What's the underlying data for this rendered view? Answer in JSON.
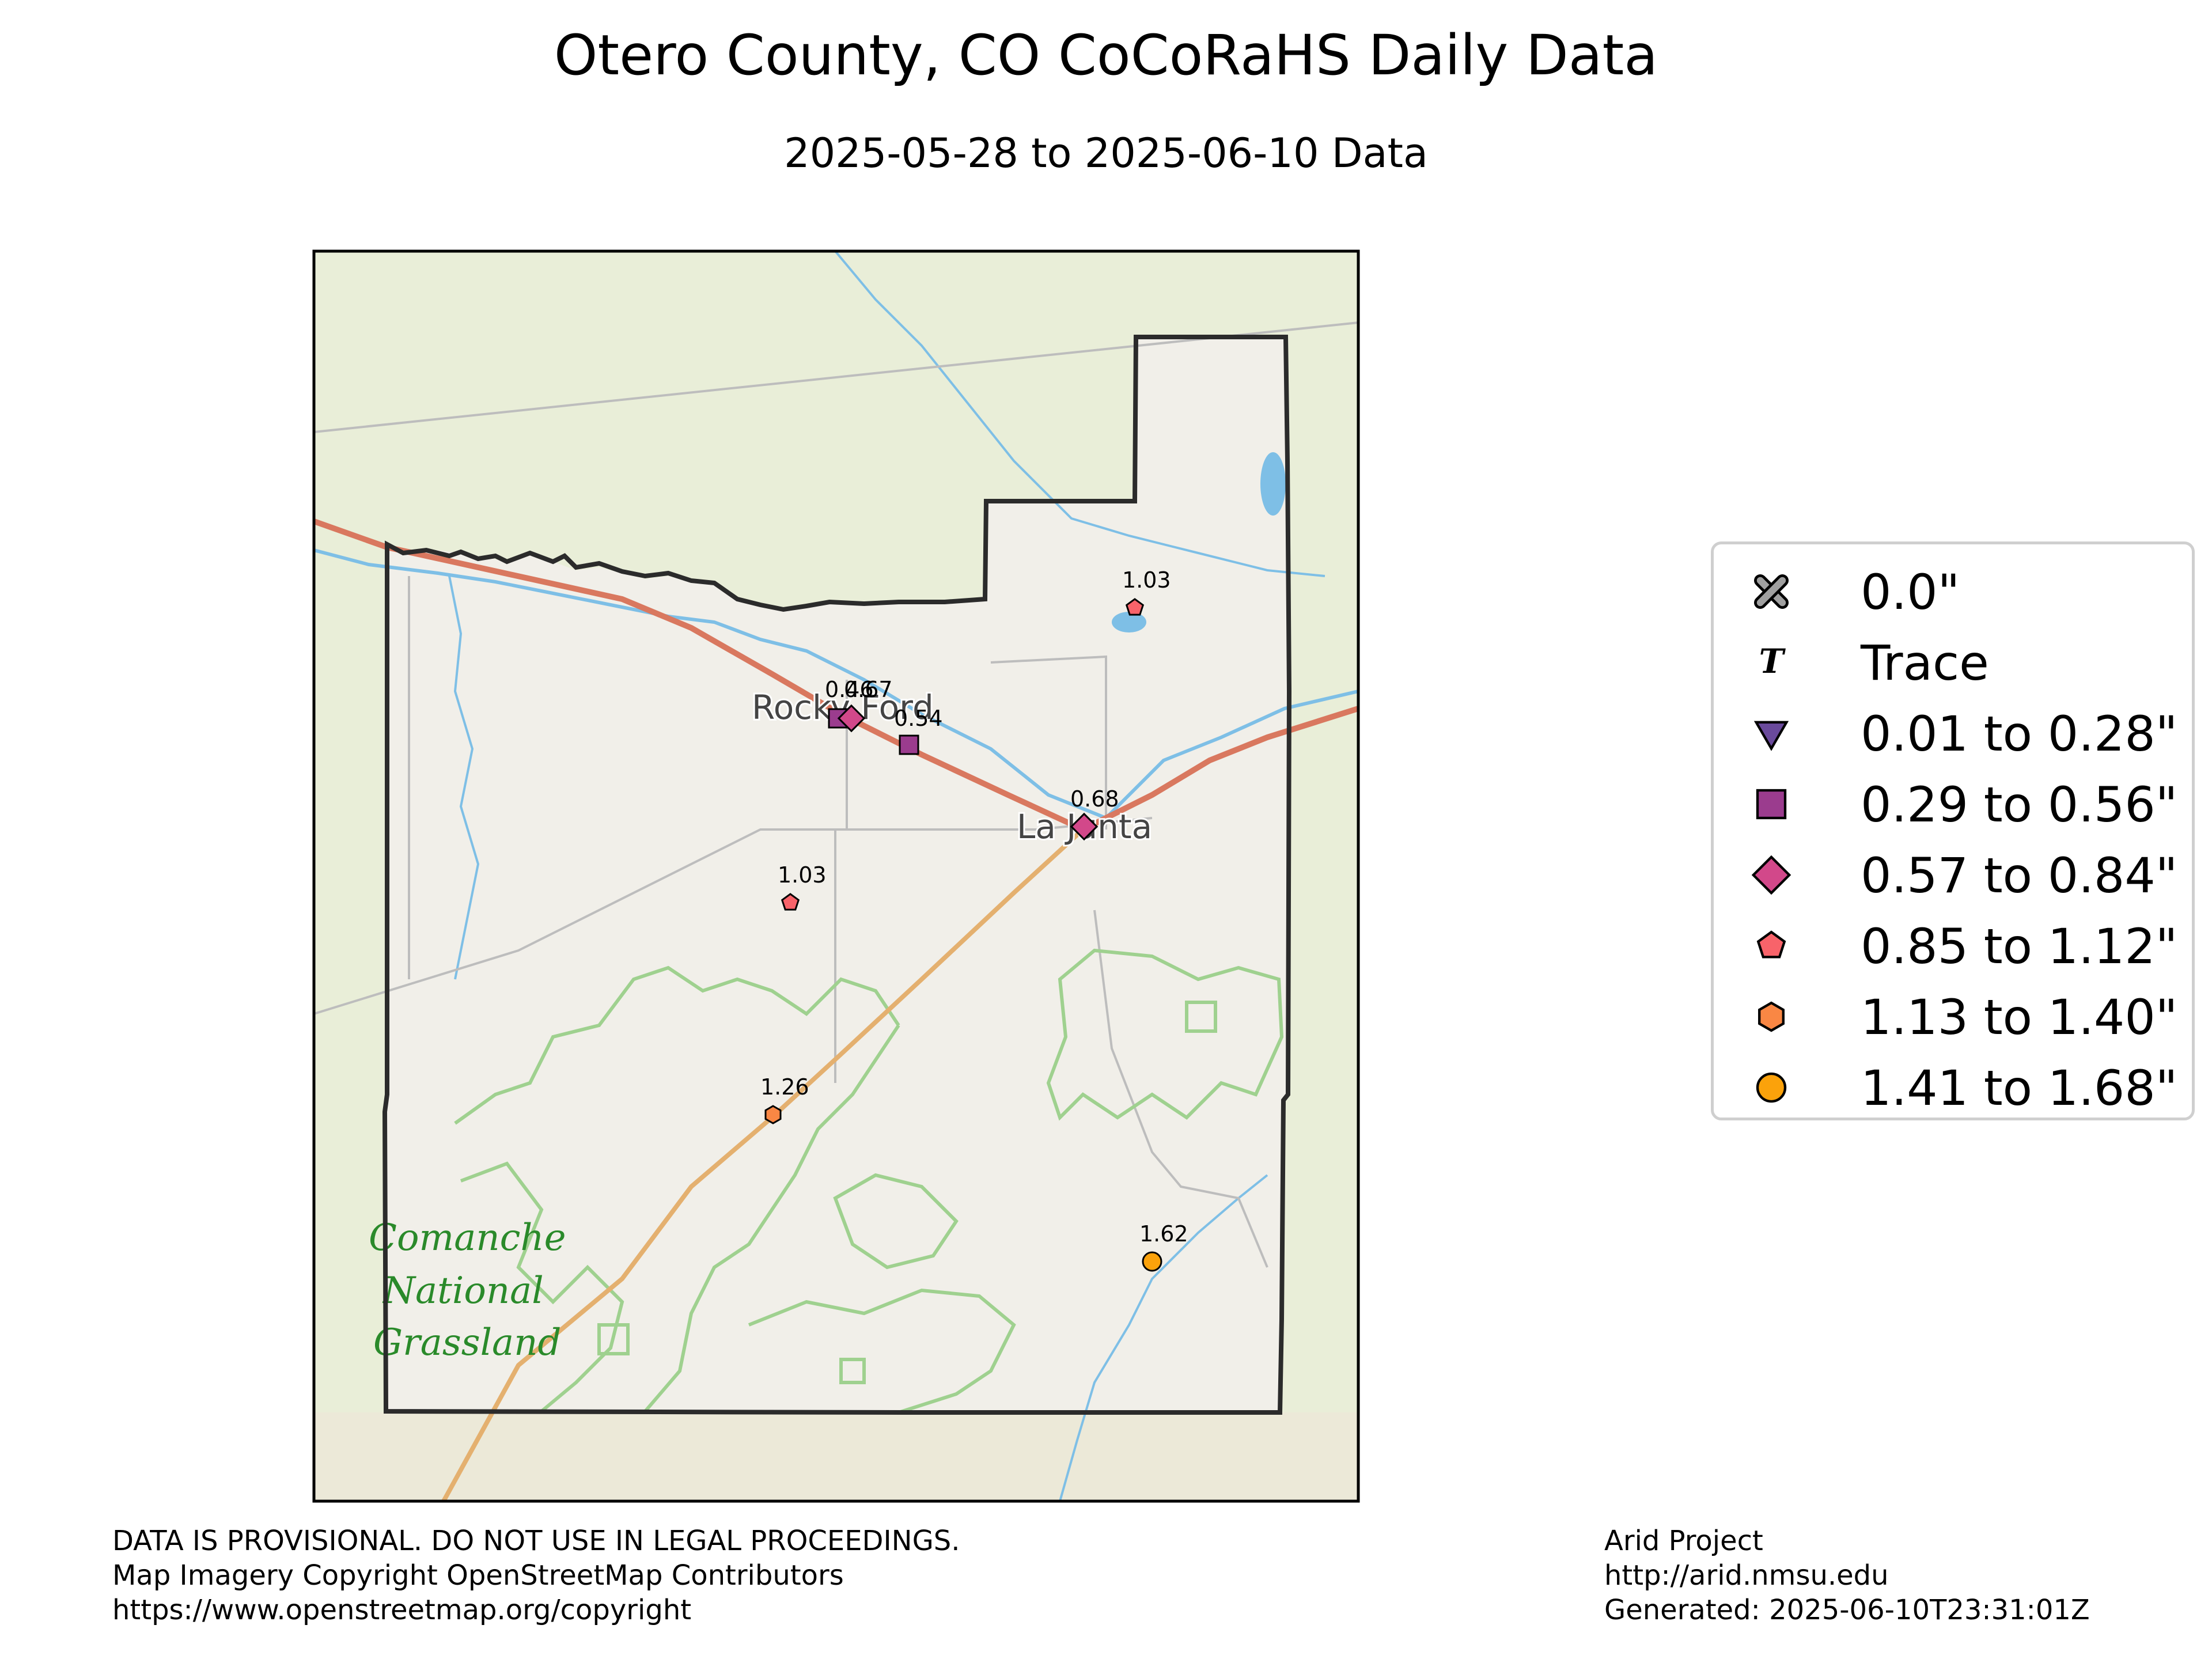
{
  "title": "Otero County, CO CoCoRaHS Daily Data",
  "subtitle": "2025-05-28 to 2025-06-10 Data",
  "map": {
    "place_labels": [
      "Rocky Ford",
      "La Junta"
    ],
    "park_label_lines": [
      "Comanche",
      "National",
      "Grassland"
    ],
    "colors": {
      "land": "#f1efe9",
      "outer_land": "#e9eed8",
      "county_border": "#2b2b2b",
      "water": "#7ebfe6",
      "highway": "#d9785f",
      "grassland_border": "#9fd18f",
      "roads": "#bdbdbd"
    }
  },
  "stations": [
    {
      "value": "0.46",
      "category": "0.29 to 0.56\"",
      "marker": "square",
      "color": "#9b3c8e"
    },
    {
      "value": "0.67",
      "category": "0.57 to 0.84\"",
      "marker": "diamond",
      "color": "#d2488a"
    },
    {
      "value": "0.54",
      "category": "0.29 to 0.56\"",
      "marker": "square",
      "color": "#9b3c8e"
    },
    {
      "value": "0.68",
      "category": "0.57 to 0.84\"",
      "marker": "diamond",
      "color": "#d2488a"
    },
    {
      "value": "1.03",
      "category": "0.85 to 1.12\"",
      "marker": "pentagon",
      "color": "#f8636a"
    },
    {
      "value": "1.03",
      "category": "0.85 to 1.12\"",
      "marker": "pentagon",
      "color": "#f8636a"
    },
    {
      "value": "1.26",
      "category": "1.13 to 1.40\"",
      "marker": "hexagon",
      "color": "#f98744"
    },
    {
      "value": "1.62",
      "category": "1.41 to 1.68\"",
      "marker": "circle",
      "color": "#fba20b"
    }
  ],
  "legend": [
    {
      "label": "0.0\"",
      "marker": "x",
      "color": "#a0a0a0"
    },
    {
      "label": "Trace",
      "marker": "T",
      "color": "#000000"
    },
    {
      "label": "0.01 to 0.28\"",
      "marker": "triangle-down",
      "color": "#6a4a9c"
    },
    {
      "label": "0.29 to 0.56\"",
      "marker": "square",
      "color": "#9b3c8e"
    },
    {
      "label": "0.57 to 0.84\"",
      "marker": "diamond",
      "color": "#d2488a"
    },
    {
      "label": "0.85 to 1.12\"",
      "marker": "pentagon",
      "color": "#f8636a"
    },
    {
      "label": "1.13 to 1.40\"",
      "marker": "hexagon",
      "color": "#f98744"
    },
    {
      "label": "1.41 to 1.68\"",
      "marker": "circle",
      "color": "#fba20b"
    }
  ],
  "footer_left": [
    "DATA IS PROVISIONAL. DO NOT USE IN LEGAL PROCEEDINGS.",
    "Map Imagery Copyright OpenStreetMap Contributors",
    "https://www.openstreetmap.org/copyright"
  ],
  "footer_right": [
    "Arid Project",
    "http://arid.nmsu.edu",
    "Generated: 2025-06-10T23:31:01Z"
  ]
}
